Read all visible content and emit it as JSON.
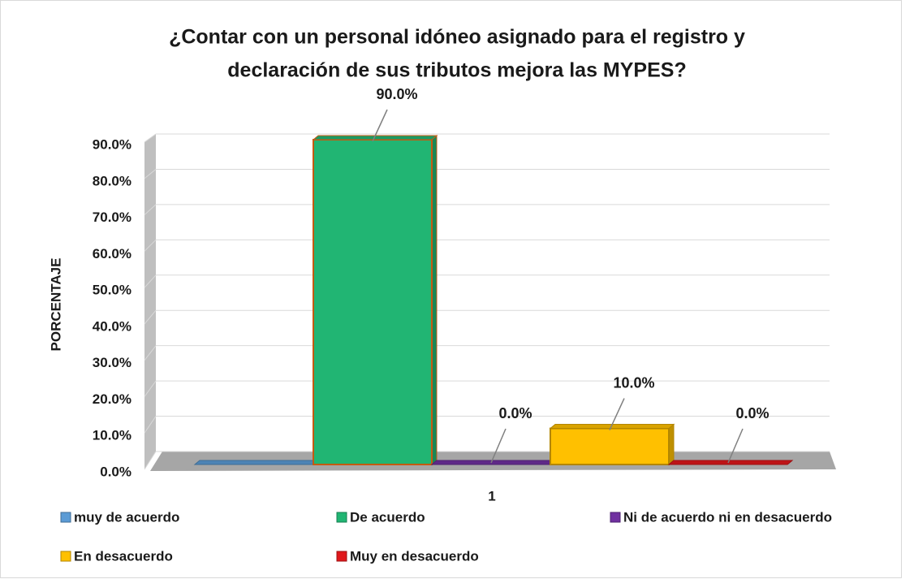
{
  "chart_data": {
    "type": "bar3d",
    "title": [
      "¿Contar con un personal idóneo asignado para el registro y",
      "declaración de sus tributos mejora las MYPES?"
    ],
    "y_label": "PORCENTAJE",
    "categories": [
      "1"
    ],
    "series": [
      {
        "name": "muy de acuerdo",
        "color": "#5b9bd5",
        "values": [
          0
        ]
      },
      {
        "name": "De acuerdo",
        "color": "#21b573",
        "values": [
          90
        ],
        "value_labels": [
          "90.0%"
        ]
      },
      {
        "name": "Ni de acuerdo ni en desacuerdo",
        "color": "#7030a0",
        "values": [
          0
        ],
        "value_labels": [
          "0.0%"
        ]
      },
      {
        "name": "En desacuerdo",
        "color": "#ffc000",
        "values": [
          10
        ],
        "value_labels": [
          "10.0%"
        ]
      },
      {
        "name": "Muy en desacuerdo",
        "color": "#e0181b",
        "values": [
          0
        ],
        "value_labels": [
          "0.0%"
        ]
      }
    ],
    "ylim": [
      0,
      90
    ],
    "yticks": [
      {
        "value": 0,
        "label": "0.0%"
      },
      {
        "value": 10,
        "label": "10.0%"
      },
      {
        "value": 20,
        "label": "20.0%"
      },
      {
        "value": 30,
        "label": "30.0%"
      },
      {
        "value": 40,
        "label": "40.0%"
      },
      {
        "value": 50,
        "label": "50.0%"
      },
      {
        "value": 60,
        "label": "60.0%"
      },
      {
        "value": 70,
        "label": "70.0%"
      },
      {
        "value": 80,
        "label": "80.0%"
      },
      {
        "value": 90,
        "label": "90.0%"
      }
    ],
    "grid": true
  }
}
